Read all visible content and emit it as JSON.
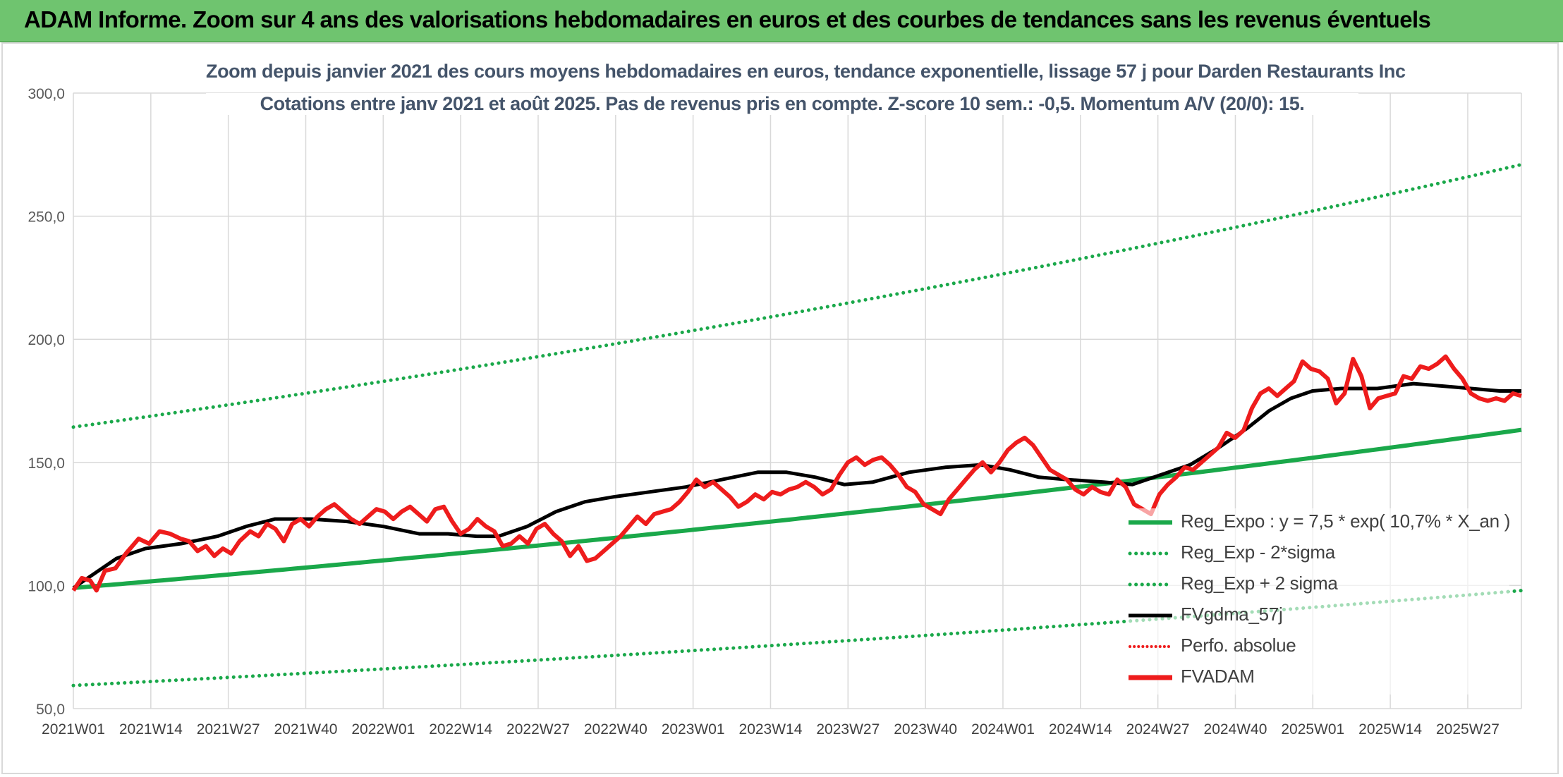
{
  "header": {
    "title": "ADAM Informe. Zoom sur 4 ans des valorisations hebdomadaires en euros et des courbes de tendances sans les revenus éventuels"
  },
  "chart_data": {
    "type": "line",
    "title": "Zoom depuis janvier 2021 des cours moyens hebdomadaires en euros, tendance exponentielle, lissage 57 j pour Darden Restaurants Inc",
    "subtitle": "Cotations entre janv 2021 et août 2025. Pas de revenus pris en compte. Z-score 10 sem.: -0,5. Momentum A/V (20/0): 15.",
    "ylim": [
      50,
      300
    ],
    "yticks": [
      "50,0",
      "100,0",
      "150,0",
      "200,0",
      "250,0",
      "300,0"
    ],
    "xticks": [
      "2021W01",
      "2021W14",
      "2021W27",
      "2021W40",
      "2022W01",
      "2022W14",
      "2022W27",
      "2022W40",
      "2023W01",
      "2023W14",
      "2023W27",
      "2023W40",
      "2024W01",
      "2024W14",
      "2024W27",
      "2024W40",
      "2025W01",
      "2025W14",
      "2025W27"
    ],
    "grid": true,
    "legend_position": "bottom-right",
    "weeks": 243,
    "trend": {
      "a": 7.5,
      "rate": 0.107,
      "x_an_start": 2.5,
      "sigma_low_factor": 0.6,
      "sigma_high_factor": 1.66
    },
    "series": [
      {
        "name": "Reg_Expo : y = 7,5 * exp( 10,7% *  X_an )",
        "key": "reg",
        "color": "#1aa84a",
        "style": "solid"
      },
      {
        "name": "Reg_Exp - 2*sigma",
        "key": "low",
        "color": "#1aa84a",
        "style": "dotted"
      },
      {
        "name": "Reg_Exp + 2 sigma",
        "key": "high",
        "color": "#1aa84a",
        "style": "dotted"
      },
      {
        "name": "FVgdma_57j",
        "key": "sma",
        "color": "#000000",
        "style": "solid",
        "points": [
          [
            0,
            99
          ],
          [
            6,
            105
          ],
          [
            12,
            111
          ],
          [
            20,
            115
          ],
          [
            30,
            117
          ],
          [
            40,
            120
          ],
          [
            48,
            124
          ],
          [
            56,
            127
          ],
          [
            66,
            127
          ],
          [
            76,
            126
          ],
          [
            86,
            124
          ],
          [
            96,
            121
          ],
          [
            104,
            121
          ],
          [
            112,
            120
          ],
          [
            118,
            120
          ],
          [
            126,
            124
          ],
          [
            134,
            130
          ],
          [
            142,
            134
          ],
          [
            150,
            136
          ],
          [
            160,
            138
          ],
          [
            170,
            140
          ],
          [
            180,
            143
          ],
          [
            190,
            146
          ],
          [
            198,
            146
          ],
          [
            206,
            144
          ],
          [
            214,
            141
          ],
          [
            222,
            142
          ],
          [
            232,
            146
          ],
          [
            242,
            148
          ],
          [
            252,
            149
          ],
          [
            260,
            147
          ],
          [
            268,
            144
          ],
          [
            276,
            143
          ],
          [
            286,
            142
          ],
          [
            294,
            141
          ],
          [
            302,
            145
          ],
          [
            310,
            149
          ],
          [
            318,
            156
          ],
          [
            326,
            164
          ],
          [
            332,
            171
          ],
          [
            338,
            176
          ],
          [
            344,
            179
          ],
          [
            352,
            180
          ],
          [
            362,
            180
          ],
          [
            372,
            182
          ],
          [
            380,
            181
          ],
          [
            388,
            180
          ],
          [
            396,
            179
          ],
          [
            402,
            179
          ]
        ]
      },
      {
        "name": "Perfo. absolue",
        "key": "perf",
        "color": "#ee1c1c",
        "style": "dotted"
      },
      {
        "name": "FVADAM",
        "key": "fvadam",
        "color": "#ee1c1c",
        "style": "solid",
        "points": [
          [
            0,
            98
          ],
          [
            4,
            103
          ],
          [
            8,
            102
          ],
          [
            11,
            98
          ],
          [
            15,
            106
          ],
          [
            20,
            107
          ],
          [
            25,
            113
          ],
          [
            31,
            119
          ],
          [
            36,
            117
          ],
          [
            41,
            122
          ],
          [
            46,
            121
          ],
          [
            51,
            119
          ],
          [
            55,
            118
          ],
          [
            59,
            114
          ],
          [
            63,
            116
          ],
          [
            67,
            112
          ],
          [
            71,
            115
          ],
          [
            75,
            113
          ],
          [
            79,
            118
          ],
          [
            84,
            122
          ],
          [
            88,
            120
          ],
          [
            92,
            125
          ],
          [
            96,
            123
          ],
          [
            100,
            118
          ],
          [
            104,
            125
          ],
          [
            108,
            127
          ],
          [
            112,
            124
          ],
          [
            116,
            128
          ],
          [
            120,
            131
          ],
          [
            124,
            133
          ],
          [
            128,
            130
          ],
          [
            132,
            127
          ],
          [
            136,
            125
          ],
          [
            140,
            128
          ],
          [
            144,
            131
          ],
          [
            148,
            130
          ],
          [
            152,
            127
          ],
          [
            156,
            130
          ],
          [
            160,
            132
          ],
          [
            164,
            129
          ],
          [
            168,
            126
          ],
          [
            172,
            131
          ],
          [
            176,
            132
          ],
          [
            180,
            126
          ],
          [
            184,
            121
          ],
          [
            188,
            123
          ],
          [
            192,
            127
          ],
          [
            196,
            124
          ],
          [
            200,
            122
          ],
          [
            204,
            116
          ],
          [
            208,
            117
          ],
          [
            212,
            120
          ],
          [
            216,
            117
          ],
          [
            220,
            123
          ],
          [
            224,
            125
          ],
          [
            228,
            121
          ],
          [
            232,
            118
          ],
          [
            236,
            112
          ],
          [
            240,
            116
          ],
          [
            244,
            110
          ],
          [
            248,
            111
          ],
          [
            252,
            114
          ],
          [
            256,
            117
          ],
          [
            260,
            120
          ],
          [
            264,
            124
          ],
          [
            268,
            128
          ],
          [
            272,
            125
          ],
          [
            276,
            129
          ],
          [
            280,
            130
          ],
          [
            284,
            131
          ],
          [
            288,
            134
          ],
          [
            292,
            138
          ],
          [
            296,
            143
          ],
          [
            300,
            140
          ],
          [
            304,
            142
          ],
          [
            308,
            139
          ],
          [
            312,
            136
          ],
          [
            316,
            132
          ],
          [
            320,
            134
          ],
          [
            324,
            137
          ],
          [
            328,
            135
          ],
          [
            332,
            138
          ],
          [
            336,
            137
          ],
          [
            340,
            139
          ],
          [
            344,
            140
          ],
          [
            348,
            142
          ],
          [
            352,
            140
          ],
          [
            356,
            137
          ],
          [
            360,
            139
          ],
          [
            364,
            145
          ],
          [
            368,
            150
          ],
          [
            372,
            152
          ],
          [
            376,
            149
          ],
          [
            380,
            151
          ],
          [
            384,
            152
          ],
          [
            388,
            149
          ],
          [
            392,
            145
          ],
          [
            396,
            140
          ],
          [
            400,
            138
          ],
          [
            404,
            133
          ],
          [
            408,
            131
          ],
          [
            412,
            129
          ],
          [
            416,
            135
          ],
          [
            420,
            139
          ],
          [
            424,
            143
          ],
          [
            428,
            147
          ],
          [
            432,
            150
          ],
          [
            436,
            146
          ],
          [
            440,
            150
          ],
          [
            444,
            155
          ],
          [
            448,
            158
          ],
          [
            452,
            160
          ],
          [
            456,
            157
          ],
          [
            460,
            152
          ],
          [
            464,
            147
          ],
          [
            468,
            145
          ],
          [
            472,
            143
          ],
          [
            476,
            139
          ],
          [
            480,
            137
          ],
          [
            484,
            140
          ],
          [
            488,
            138
          ],
          [
            492,
            137
          ],
          [
            496,
            143
          ],
          [
            500,
            140
          ],
          [
            504,
            133
          ],
          [
            508,
            131
          ],
          [
            512,
            129
          ],
          [
            516,
            137
          ],
          [
            520,
            141
          ],
          [
            524,
            144
          ],
          [
            528,
            148
          ],
          [
            532,
            147
          ],
          [
            536,
            150
          ],
          [
            540,
            153
          ],
          [
            544,
            156
          ],
          [
            548,
            162
          ],
          [
            552,
            160
          ],
          [
            556,
            163
          ],
          [
            560,
            172
          ],
          [
            564,
            178
          ],
          [
            568,
            180
          ],
          [
            572,
            177
          ],
          [
            576,
            180
          ],
          [
            580,
            183
          ],
          [
            584,
            191
          ],
          [
            588,
            188
          ],
          [
            592,
            187
          ],
          [
            596,
            184
          ],
          [
            600,
            174
          ],
          [
            604,
            178
          ],
          [
            608,
            192
          ],
          [
            612,
            185
          ],
          [
            616,
            172
          ],
          [
            620,
            176
          ],
          [
            624,
            177
          ],
          [
            628,
            178
          ],
          [
            632,
            185
          ],
          [
            636,
            184
          ],
          [
            640,
            189
          ],
          [
            644,
            188
          ],
          [
            648,
            190
          ],
          [
            652,
            193
          ],
          [
            656,
            188
          ],
          [
            660,
            184
          ],
          [
            664,
            178
          ],
          [
            668,
            176
          ],
          [
            672,
            175
          ],
          [
            676,
            176
          ],
          [
            680,
            175
          ],
          [
            684,
            178
          ],
          [
            688,
            177
          ]
        ]
      }
    ]
  }
}
